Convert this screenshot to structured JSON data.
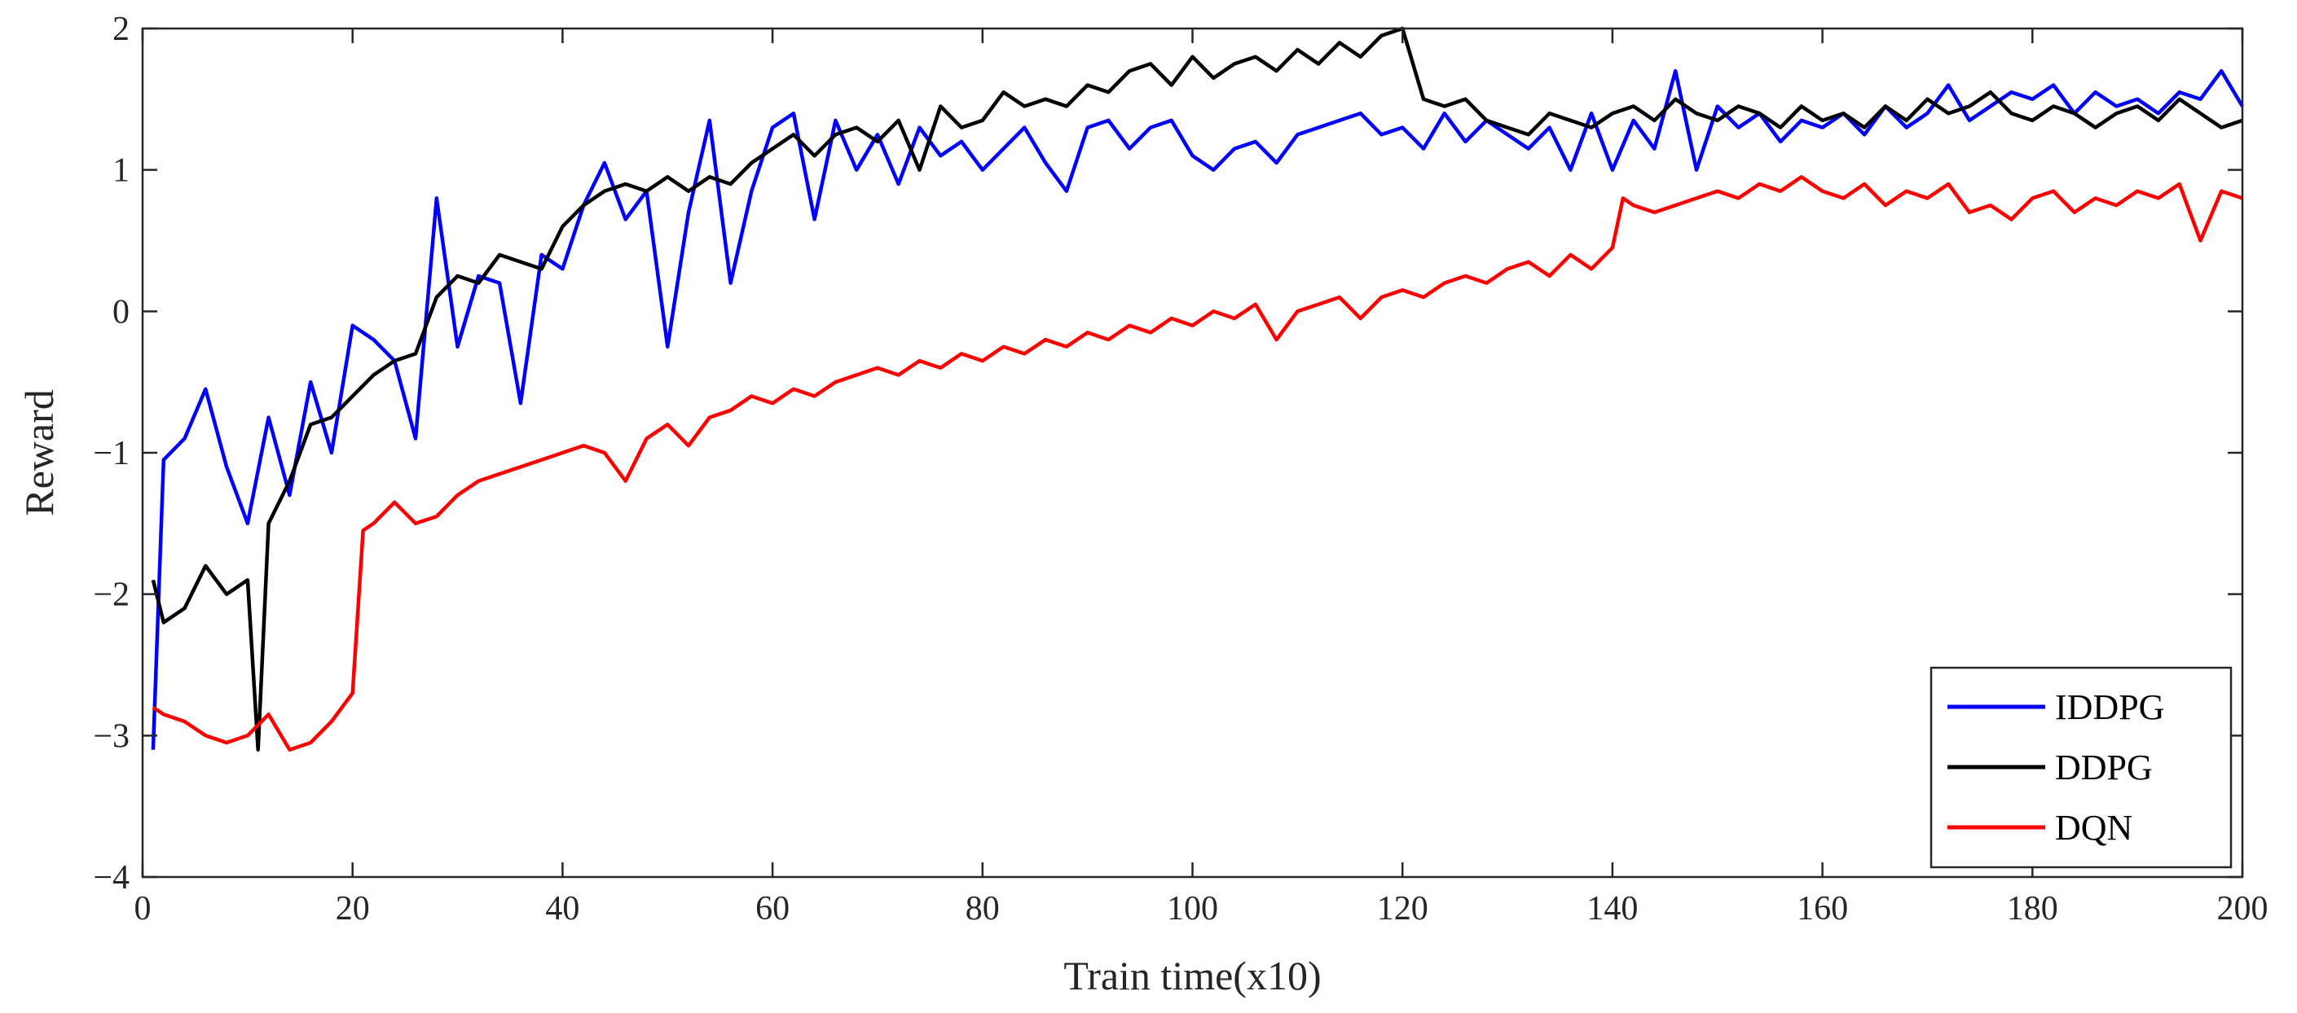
{
  "chart_data": {
    "type": "line",
    "title": "",
    "xlabel": "Train time(x10)",
    "ylabel": "Reward",
    "xlim": [
      0,
      200
    ],
    "ylim": [
      -4,
      2
    ],
    "x_ticks": [
      0,
      20,
      40,
      60,
      80,
      100,
      120,
      140,
      160,
      180,
      200
    ],
    "y_ticks": [
      -4,
      -3,
      -2,
      -1,
      0,
      1,
      2
    ],
    "x_tick_labels": [
      "0",
      "20",
      "40",
      "60",
      "80",
      "100",
      "120",
      "140",
      "160",
      "180",
      "200"
    ],
    "y_tick_labels": [
      "−4",
      "−3",
      "−2",
      "−1",
      "0",
      "1",
      "2"
    ],
    "grid": false,
    "legend_position": "bottom-right",
    "series": [
      {
        "name": "IDDPG",
        "color": "#0000ff",
        "x": [
          1,
          2,
          4,
          6,
          8,
          10,
          12,
          14,
          16,
          18,
          20,
          22,
          24,
          26,
          28,
          30,
          32,
          34,
          36,
          38,
          40,
          42,
          44,
          46,
          48,
          50,
          52,
          54,
          56,
          58,
          60,
          62,
          64,
          66,
          68,
          70,
          72,
          74,
          76,
          78,
          80,
          82,
          84,
          86,
          88,
          90,
          92,
          94,
          96,
          98,
          100,
          102,
          104,
          106,
          108,
          110,
          112,
          114,
          116,
          118,
          120,
          122,
          124,
          126,
          128,
          130,
          132,
          134,
          136,
          138,
          140,
          142,
          144,
          146,
          148,
          150,
          152,
          154,
          156,
          158,
          160,
          162,
          164,
          166,
          168,
          170,
          172,
          174,
          176,
          178,
          180,
          182,
          184,
          186,
          188,
          190,
          192,
          194,
          196,
          198,
          200
        ],
        "values": [
          -3.1,
          -1.05,
          -0.9,
          -0.55,
          -1.1,
          -1.5,
          -0.75,
          -1.3,
          -0.5,
          -1.0,
          -0.1,
          -0.2,
          -0.35,
          -0.9,
          0.8,
          -0.25,
          0.25,
          0.2,
          -0.65,
          0.4,
          0.3,
          0.75,
          1.05,
          0.65,
          0.85,
          -0.25,
          0.7,
          1.35,
          0.2,
          0.85,
          1.3,
          1.4,
          0.65,
          1.35,
          1.0,
          1.25,
          0.9,
          1.3,
          1.1,
          1.2,
          1.0,
          1.15,
          1.3,
          1.05,
          0.85,
          1.3,
          1.35,
          1.15,
          1.3,
          1.35,
          1.1,
          1.0,
          1.15,
          1.2,
          1.05,
          1.25,
          1.3,
          1.35,
          1.4,
          1.25,
          1.3,
          1.15,
          1.4,
          1.2,
          1.35,
          1.25,
          1.15,
          1.3,
          1.0,
          1.4,
          1.0,
          1.35,
          1.15,
          1.7,
          1.0,
          1.45,
          1.3,
          1.4,
          1.2,
          1.35,
          1.3,
          1.4,
          1.25,
          1.45,
          1.3,
          1.4,
          1.6,
          1.35,
          1.45,
          1.55,
          1.5,
          1.6,
          1.4,
          1.55,
          1.45,
          1.5,
          1.4,
          1.55,
          1.5,
          1.7,
          1.45
        ]
      },
      {
        "name": "DDPG",
        "color": "#000000",
        "x": [
          1,
          2,
          4,
          6,
          8,
          10,
          11,
          12,
          14,
          16,
          18,
          20,
          22,
          24,
          26,
          28,
          30,
          32,
          34,
          36,
          38,
          40,
          42,
          44,
          46,
          48,
          50,
          52,
          54,
          56,
          58,
          60,
          62,
          64,
          66,
          68,
          70,
          72,
          74,
          76,
          78,
          80,
          82,
          84,
          86,
          88,
          90,
          92,
          94,
          96,
          98,
          100,
          102,
          104,
          106,
          108,
          110,
          112,
          114,
          116,
          118,
          120,
          122,
          124,
          126,
          128,
          130,
          132,
          134,
          136,
          138,
          140,
          142,
          144,
          146,
          148,
          150,
          152,
          154,
          156,
          158,
          160,
          162,
          164,
          166,
          168,
          170,
          172,
          174,
          176,
          178,
          180,
          182,
          184,
          186,
          188,
          190,
          192,
          194,
          196,
          198,
          200
        ],
        "values": [
          -1.9,
          -2.2,
          -2.1,
          -1.8,
          -2.0,
          -1.9,
          -3.1,
          -1.5,
          -1.2,
          -0.8,
          -0.75,
          -0.6,
          -0.45,
          -0.35,
          -0.3,
          0.1,
          0.25,
          0.2,
          0.4,
          0.35,
          0.3,
          0.6,
          0.75,
          0.85,
          0.9,
          0.85,
          0.95,
          0.85,
          0.95,
          0.9,
          1.05,
          1.15,
          1.25,
          1.1,
          1.25,
          1.3,
          1.2,
          1.35,
          1.0,
          1.45,
          1.3,
          1.35,
          1.55,
          1.45,
          1.5,
          1.45,
          1.6,
          1.55,
          1.7,
          1.75,
          1.6,
          1.8,
          1.65,
          1.75,
          1.8,
          1.7,
          1.85,
          1.75,
          1.9,
          1.8,
          1.95,
          2.0,
          1.5,
          1.45,
          1.5,
          1.35,
          1.3,
          1.25,
          1.4,
          1.35,
          1.3,
          1.4,
          1.45,
          1.35,
          1.5,
          1.4,
          1.35,
          1.45,
          1.4,
          1.3,
          1.45,
          1.35,
          1.4,
          1.3,
          1.45,
          1.35,
          1.5,
          1.4,
          1.45,
          1.55,
          1.4,
          1.35,
          1.45,
          1.4,
          1.3,
          1.4,
          1.45,
          1.35,
          1.5,
          1.4,
          1.3,
          1.35
        ]
      },
      {
        "name": "DQN",
        "color": "#ff0000",
        "x": [
          1,
          2,
          4,
          6,
          8,
          10,
          12,
          14,
          16,
          18,
          20,
          21,
          22,
          24,
          26,
          28,
          30,
          32,
          34,
          36,
          38,
          40,
          42,
          44,
          46,
          48,
          50,
          52,
          54,
          56,
          58,
          60,
          62,
          64,
          66,
          68,
          70,
          72,
          74,
          76,
          78,
          80,
          82,
          84,
          86,
          88,
          90,
          92,
          94,
          96,
          98,
          100,
          102,
          104,
          106,
          108,
          110,
          112,
          114,
          116,
          118,
          120,
          122,
          124,
          126,
          128,
          130,
          132,
          134,
          136,
          138,
          140,
          141,
          142,
          144,
          146,
          148,
          150,
          152,
          154,
          156,
          158,
          160,
          162,
          164,
          166,
          168,
          170,
          172,
          174,
          176,
          178,
          180,
          182,
          184,
          186,
          188,
          190,
          192,
          194,
          196,
          198,
          200
        ],
        "values": [
          -2.8,
          -2.85,
          -2.9,
          -3.0,
          -3.05,
          -3.0,
          -2.85,
          -3.1,
          -3.05,
          -2.9,
          -2.7,
          -1.55,
          -1.5,
          -1.35,
          -1.5,
          -1.45,
          -1.3,
          -1.2,
          -1.15,
          -1.1,
          -1.05,
          -1.0,
          -0.95,
          -1.0,
          -1.2,
          -0.9,
          -0.8,
          -0.95,
          -0.75,
          -0.7,
          -0.6,
          -0.65,
          -0.55,
          -0.6,
          -0.5,
          -0.45,
          -0.4,
          -0.45,
          -0.35,
          -0.4,
          -0.3,
          -0.35,
          -0.25,
          -0.3,
          -0.2,
          -0.25,
          -0.15,
          -0.2,
          -0.1,
          -0.15,
          -0.05,
          -0.1,
          0.0,
          -0.05,
          0.05,
          -0.2,
          0.0,
          0.05,
          0.1,
          -0.05,
          0.1,
          0.15,
          0.1,
          0.2,
          0.25,
          0.2,
          0.3,
          0.35,
          0.25,
          0.4,
          0.3,
          0.45,
          0.8,
          0.75,
          0.7,
          0.75,
          0.8,
          0.85,
          0.8,
          0.9,
          0.85,
          0.95,
          0.85,
          0.8,
          0.9,
          0.75,
          0.85,
          0.8,
          0.9,
          0.7,
          0.75,
          0.65,
          0.8,
          0.85,
          0.7,
          0.8,
          0.75,
          0.85,
          0.8,
          0.9,
          0.5,
          0.85,
          0.8
        ]
      }
    ]
  }
}
